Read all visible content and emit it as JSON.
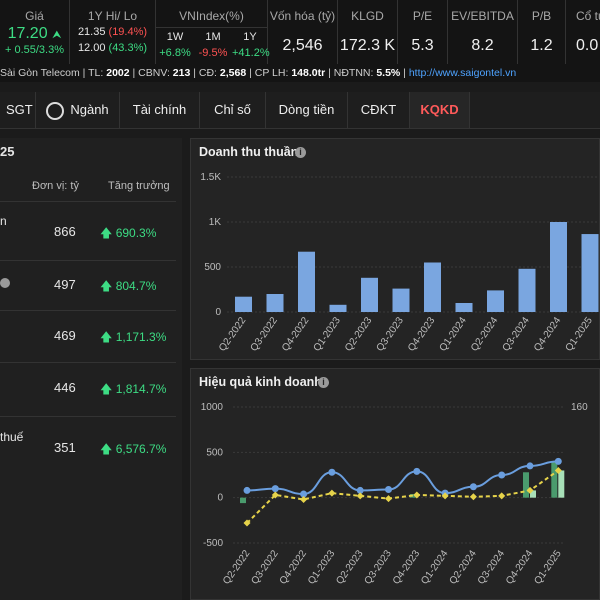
{
  "header": {
    "gia": {
      "label": "Giá",
      "price": "17.20",
      "change": "+ 0.55/3.3%"
    },
    "hilo": {
      "label": "1Y Hi/ Lo",
      "hi": "21.35",
      "hi_pct": "(19.4%)",
      "lo": "12.00",
      "lo_pct": "(43.3%)"
    },
    "vnindex": {
      "label": "VNIndex(%)",
      "periods": [
        "1W",
        "1M",
        "1Y"
      ],
      "values": [
        "+6.8%",
        "-9.5%",
        "+41.2%"
      ]
    },
    "vonhoa": {
      "label": "Vốn hóa (tỷ)",
      "value": "2,546"
    },
    "klgd": {
      "label": "KLGD",
      "value": "172.3 K"
    },
    "pe": {
      "label": "P/E",
      "value": "5.3"
    },
    "ev": {
      "label": "EV/EBITDA",
      "value": "8.2"
    },
    "pb": {
      "label": "P/B",
      "value": "1.2"
    },
    "coTuc": {
      "label": "Cổ tứ",
      "value": "0.0"
    }
  },
  "info_bar": {
    "company": "Sài Gòn Telecom",
    "tl_label": "TL:",
    "tl": "2002",
    "cbnv_label": "CBNV:",
    "cbnv": "213",
    "cd_label": "CĐ:",
    "cd": "2,568",
    "cplh_label": "CP LH:",
    "cplh": "148.0tr",
    "ndtnn_label": "NĐTNN:",
    "ndtnn": "5.5%",
    "website": "http://www.saigontel.vn"
  },
  "tabs": {
    "ticker": "SGT",
    "nganh": "Ngành",
    "items": [
      "Tài chính",
      "Chỉ số",
      "Dòng tiền",
      "CĐKT",
      "KQKD"
    ]
  },
  "left_panel": {
    "title_fragment": "25",
    "col_unit": "Đơn vị: tỷ",
    "col_growth": "Tăng trưởng",
    "rows": [
      {
        "label": "n",
        "value": "866",
        "growth": "690.3%"
      },
      {
        "label": "",
        "value": "497",
        "growth": "804.7%"
      },
      {
        "label": "",
        "value": "469",
        "growth": "1,171.3%"
      },
      {
        "label": "",
        "value": "446",
        "growth": "1,814.7%"
      },
      {
        "label": "thuế",
        "value": "351",
        "growth": "6,576.7%"
      }
    ]
  },
  "colors": {
    "bar": "#7aa6e0",
    "line": "#6a9ede",
    "dash": "#e6d34a",
    "green_bar": "#4a9b6d",
    "light_green": "#a8e0b8",
    "accent_red": "#ff5a5a",
    "up_green": "#3ddc84"
  },
  "chart_data": [
    {
      "type": "bar",
      "title": "Doanh thu thuần",
      "categories": [
        "Q2-2022",
        "Q3-2022",
        "Q4-2022",
        "Q1-2023",
        "Q2-2023",
        "Q3-2023",
        "Q4-2023",
        "Q1-2024",
        "Q2-2024",
        "Q3-2024",
        "Q4-2024",
        "Q1-2025"
      ],
      "values": [
        170,
        200,
        670,
        80,
        380,
        260,
        550,
        100,
        240,
        480,
        1000,
        866
      ],
      "ylim": [
        0,
        1500
      ],
      "y_ticks": [
        "0",
        "500",
        "1K",
        "1.5K"
      ],
      "grid": true
    },
    {
      "type": "line",
      "title": "Hiệu quả kinh doanh",
      "categories": [
        "Q2-2022",
        "Q3-2022",
        "Q4-2022",
        "Q1-2023",
        "Q2-2023",
        "Q3-2023",
        "Q4-2023",
        "Q1-2024",
        "Q2-2024",
        "Q3-2024",
        "Q4-2024",
        "Q1-2025"
      ],
      "ylim": [
        -500,
        1000
      ],
      "y_ticks": [
        "-500",
        "0",
        "500",
        "1000"
      ],
      "right_y_tick": "160",
      "series": [
        {
          "values": [
            80,
            100,
            40,
            280,
            80,
            90,
            290,
            50,
            120,
            250,
            350,
            400
          ]
        },
        {
          "values": [
            -280,
            30,
            -20,
            50,
            20,
            -10,
            30,
            20,
            10,
            20,
            80,
            300
          ]
        },
        {
          "values": [
            -60,
            0,
            0,
            0,
            0,
            0,
            40,
            0,
            0,
            0,
            280,
            400
          ]
        },
        {
          "values": [
            0,
            0,
            0,
            0,
            0,
            0,
            0,
            0,
            0,
            0,
            80,
            300
          ]
        }
      ],
      "grid": true
    }
  ]
}
